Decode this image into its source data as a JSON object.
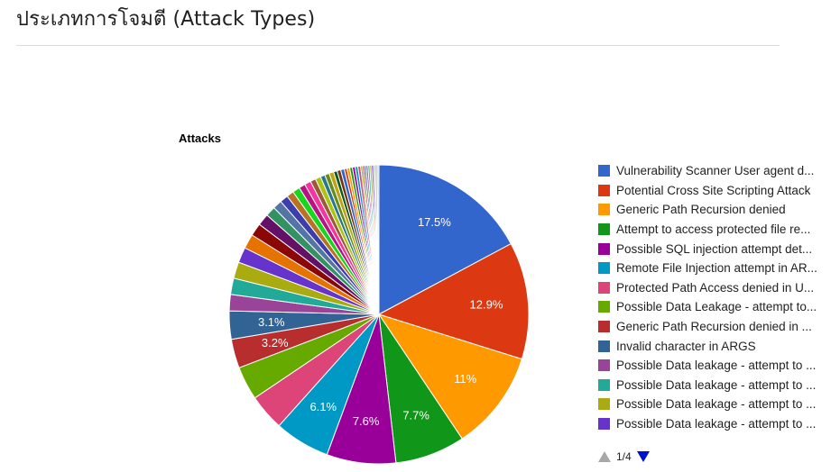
{
  "page": {
    "title": "ประเภทการโจมตี (Attack Types)"
  },
  "pager": {
    "text": "1/4",
    "prev_icon": "triangle-up-icon",
    "next_icon": "triangle-down-icon",
    "prev_color": "#a8a8a8",
    "next_color": "#0011cc"
  },
  "chart_data": {
    "type": "pie",
    "title": "Attacks",
    "legend_position": "right",
    "slices": [
      {
        "label": "Vulnerability Scanner User agent d...",
        "value": 17.5,
        "color": "#3366cc",
        "data_label": "17.5%"
      },
      {
        "label": "Potential Cross Site Scripting Attack",
        "value": 12.9,
        "color": "#dc3912",
        "data_label": "12.9%"
      },
      {
        "label": "Generic Path Recursion denied",
        "value": 11.0,
        "color": "#ff9900",
        "data_label": "11%"
      },
      {
        "label": "Attempt to access protected file re...",
        "value": 7.7,
        "color": "#109618",
        "data_label": "7.7%"
      },
      {
        "label": "Possible SQL injection attempt det...",
        "value": 7.6,
        "color": "#990099",
        "data_label": "7.6%"
      },
      {
        "label": "Remote File Injection attempt in AR...",
        "value": 6.1,
        "color": "#0099c6",
        "data_label": "6.1%"
      },
      {
        "label": "Protected Path Access denied in U...",
        "value": 4.0,
        "color": "#dd4477",
        "data_label": ""
      },
      {
        "label": "Possible Data Leakage - attempt to...",
        "value": 3.7,
        "color": "#66aa00",
        "data_label": ""
      },
      {
        "label": "Generic Path Recursion denied in ...",
        "value": 3.2,
        "color": "#b82e2e",
        "data_label": "3.2%"
      },
      {
        "label": "Invalid character in ARGS",
        "value": 3.1,
        "color": "#316395",
        "data_label": "3.1%"
      },
      {
        "label": "Possible Data leakage - attempt to ...",
        "value": 1.8,
        "color": "#994499",
        "data_label": ""
      },
      {
        "label": "Possible Data leakage - attempt to ...",
        "value": 1.8,
        "color": "#22aa99",
        "data_label": ""
      },
      {
        "label": "Possible Data leakage - attempt to ...",
        "value": 1.8,
        "color": "#aaaa11",
        "data_label": ""
      },
      {
        "label": "Possible Data leakage - attempt to ...",
        "value": 1.7,
        "color": "#6633cc",
        "data_label": ""
      },
      {
        "label": "",
        "value": 1.6,
        "color": "#e67300",
        "data_label": ""
      },
      {
        "label": "",
        "value": 1.4,
        "color": "#8b0707",
        "data_label": ""
      },
      {
        "label": "",
        "value": 1.3,
        "color": "#651067",
        "data_label": ""
      },
      {
        "label": "",
        "value": 1.1,
        "color": "#329262",
        "data_label": ""
      },
      {
        "label": "",
        "value": 1.0,
        "color": "#5574a6",
        "data_label": ""
      },
      {
        "label": "",
        "value": 0.9,
        "color": "#3b3eac",
        "data_label": ""
      },
      {
        "label": "",
        "value": 0.8,
        "color": "#b77322",
        "data_label": ""
      },
      {
        "label": "",
        "value": 0.8,
        "color": "#16d620",
        "data_label": ""
      },
      {
        "label": "",
        "value": 0.7,
        "color": "#b91383",
        "data_label": ""
      },
      {
        "label": "",
        "value": 0.7,
        "color": "#f4359e",
        "data_label": ""
      },
      {
        "label": "",
        "value": 0.6,
        "color": "#9c5935",
        "data_label": ""
      },
      {
        "label": "",
        "value": 0.6,
        "color": "#a9c413",
        "data_label": ""
      },
      {
        "label": "",
        "value": 0.5,
        "color": "#2a778d",
        "data_label": ""
      },
      {
        "label": "",
        "value": 0.5,
        "color": "#668d1c",
        "data_label": ""
      },
      {
        "label": "",
        "value": 0.5,
        "color": "#bea413",
        "data_label": ""
      },
      {
        "label": "",
        "value": 0.4,
        "color": "#0c5922",
        "data_label": ""
      },
      {
        "label": "",
        "value": 0.4,
        "color": "#743411",
        "data_label": ""
      },
      {
        "label": "",
        "value": 0.4,
        "color": "#3366cc",
        "data_label": ""
      },
      {
        "label": "",
        "value": 0.3,
        "color": "#dc3912",
        "data_label": ""
      },
      {
        "label": "",
        "value": 0.3,
        "color": "#ff9900",
        "data_label": ""
      },
      {
        "label": "",
        "value": 0.3,
        "color": "#109618",
        "data_label": ""
      },
      {
        "label": "",
        "value": 0.3,
        "color": "#990099",
        "data_label": ""
      },
      {
        "label": "",
        "value": 0.3,
        "color": "#0099c6",
        "data_label": ""
      },
      {
        "label": "",
        "value": 0.3,
        "color": "#dd4477",
        "data_label": ""
      },
      {
        "label": "",
        "value": 0.2,
        "color": "#66aa00",
        "data_label": ""
      },
      {
        "label": "",
        "value": 0.2,
        "color": "#b82e2e",
        "data_label": ""
      },
      {
        "label": "",
        "value": 0.2,
        "color": "#316395",
        "data_label": ""
      },
      {
        "label": "",
        "value": 0.2,
        "color": "#994499",
        "data_label": ""
      },
      {
        "label": "",
        "value": 0.2,
        "color": "#22aa99",
        "data_label": ""
      },
      {
        "label": "",
        "value": 0.2,
        "color": "#aaaa11",
        "data_label": ""
      },
      {
        "label": "",
        "value": 0.2,
        "color": "#6633cc",
        "data_label": ""
      },
      {
        "label": "",
        "value": 0.2,
        "color": "#bbbbbb",
        "data_label": ""
      },
      {
        "label": "",
        "value": 0.2,
        "color": "#aaaaaa",
        "data_label": ""
      },
      {
        "label": "",
        "value": 0.2,
        "color": "#cccccc",
        "data_label": ""
      }
    ]
  }
}
